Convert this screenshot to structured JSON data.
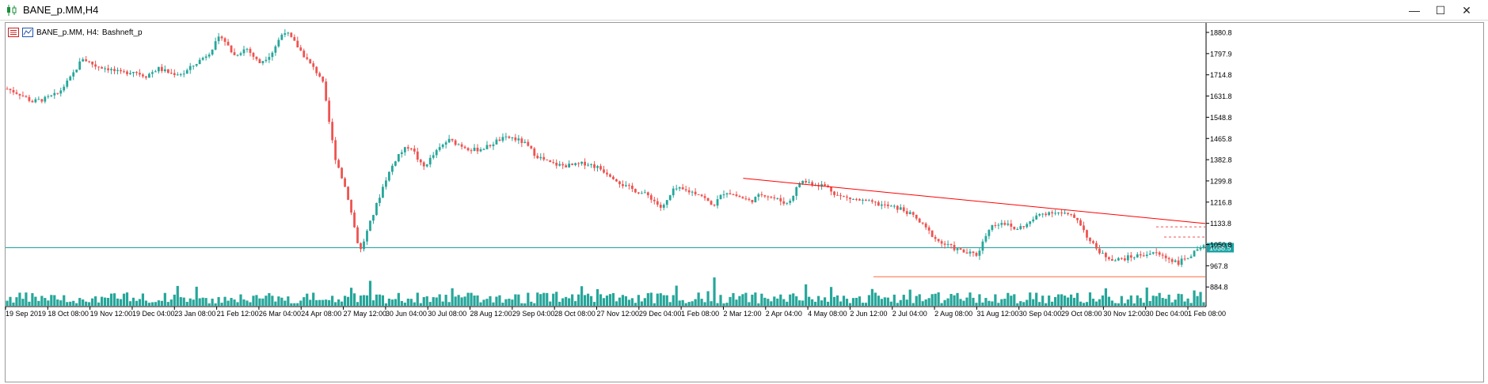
{
  "window": {
    "title": "BANE_p.MM,H4",
    "minimize_glyph": "—",
    "maximize_glyph": "☐",
    "close_glyph": "✕"
  },
  "chart_header": {
    "symbol_label": "BANE_p.MM, H4:",
    "description": "Bashneft_p"
  },
  "icons": [
    "candlestick-app-icon",
    "object-list-icon",
    "indicator-list-icon"
  ],
  "colors": {
    "bull": "#26a69a",
    "bear": "#ef5350",
    "trendline": "#ff0000",
    "hline": "#1aa3a3",
    "support": "#ff6a3d",
    "volume": "#26a69a"
  },
  "price_tag": "1038.5",
  "chart_data": {
    "type": "candlestick",
    "symbol": "BANE_p.MM",
    "timeframe": "H4",
    "ylim": [
      820,
      1920
    ],
    "y_ticks": [
      "1880.8",
      "1797.9",
      "1714.8",
      "1631.8",
      "1548.8",
      "1465.8",
      "1382.8",
      "1299.8",
      "1216.8",
      "1133.8",
      "1050.8",
      "967.8",
      "884.8"
    ],
    "x_ticks": [
      "19 Sep 2019",
      "18 Oct 08:00",
      "19 Nov 12:00",
      "19 Dec 04:00",
      "23 Jan 08:00",
      "21 Feb 12:00",
      "26 Mar 04:00",
      "24 Apr 08:00",
      "27 May 12:00",
      "30 Jun 04:00",
      "30 Jul 08:00",
      "28 Aug 12:00",
      "29 Sep 04:00",
      "28 Oct 08:00",
      "27 Nov 12:00",
      "29 Dec 04:00",
      "1 Feb 08:00",
      "2 Mar 12:00",
      "2 Apr 04:00",
      "4 May 08:00",
      "2 Jun 12:00",
      "2 Jul 04:00",
      "2 Aug 08:00",
      "31 Aug 12:00",
      "30 Sep 04:00",
      "29 Oct 08:00",
      "30 Nov 12:00",
      "30 Dec 04:00",
      "1 Feb 08:00"
    ],
    "price_path": [
      1660,
      1640,
      1610,
      1620,
      1640,
      1700,
      1780,
      1750,
      1740,
      1720,
      1730,
      1710,
      1740,
      1720,
      1720,
      1760,
      1800,
      1870,
      1790,
      1820,
      1760,
      1800,
      1890,
      1830,
      1760,
      1700,
      1400,
      1250,
      1020,
      1160,
      1300,
      1400,
      1440,
      1350,
      1410,
      1460,
      1440,
      1420,
      1430,
      1460,
      1470,
      1450,
      1400,
      1370,
      1360,
      1360,
      1370,
      1350,
      1320,
      1280,
      1260,
      1240,
      1190,
      1270,
      1260,
      1250,
      1200,
      1260,
      1240,
      1220,
      1250,
      1230,
      1210,
      1300,
      1290,
      1280,
      1240,
      1230,
      1220,
      1210,
      1200,
      1190,
      1160,
      1110,
      1060,
      1040,
      1020,
      1010,
      1120,
      1140,
      1110,
      1130,
      1170,
      1180,
      1170,
      1150,
      1060,
      1010,
      990,
      1000,
      1010,
      1020,
      1000,
      980,
      1010,
      1040
    ],
    "horizontal_line": 1038.5,
    "support_line": 925,
    "trendline": {
      "from": [
        "2 Mar 12:00",
        1310
      ],
      "to": [
        "1 Feb 08:00",
        1133
      ]
    },
    "grid": false
  }
}
